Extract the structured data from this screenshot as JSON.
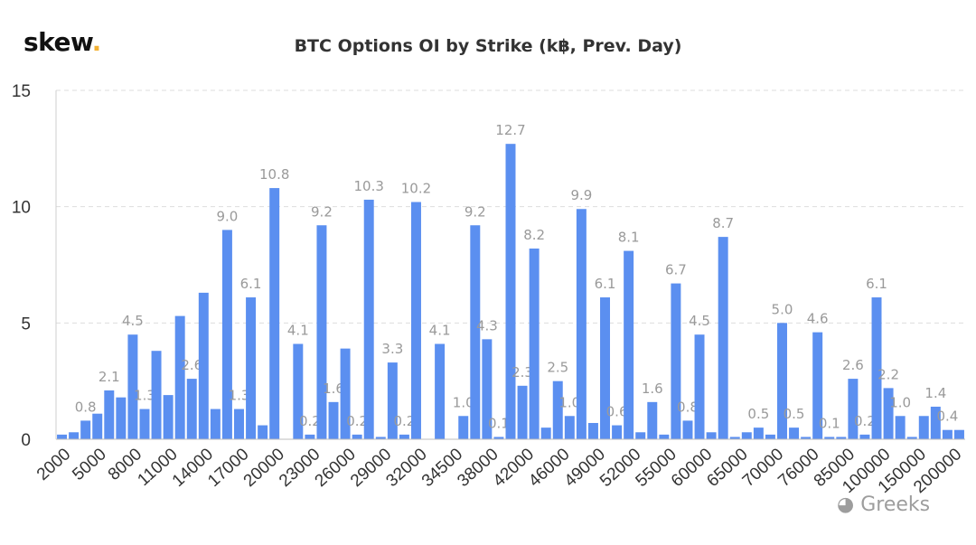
{
  "brand": {
    "name": "skew",
    "dot": "."
  },
  "watermark": {
    "icon": "wechat-icon",
    "text": "Greeks"
  },
  "chart_data": {
    "type": "bar",
    "title": "BTC Options OI by Strike (k฿, Prev. Day)",
    "xlabel": "",
    "ylabel": "",
    "ylim": [
      0,
      15
    ],
    "yticks": [
      0,
      5,
      10,
      15
    ],
    "grid": true,
    "bar_color": "#5b8ff0",
    "label_color": "#9a9a9a",
    "tick_labels": [
      "2000",
      "5000",
      "8000",
      "11000",
      "14000",
      "17000",
      "20000",
      "23000",
      "26000",
      "29000",
      "32000",
      "34500",
      "38000",
      "42000",
      "46000",
      "49000",
      "52000",
      "55000",
      "60000",
      "65000",
      "70000",
      "76000",
      "85000",
      "100000",
      "150000",
      "200000"
    ],
    "values": [
      0.2,
      0.3,
      0.8,
      1.1,
      2.1,
      1.8,
      4.5,
      1.3,
      3.8,
      1.9,
      5.3,
      2.6,
      6.3,
      1.3,
      9.0,
      1.3,
      6.1,
      0.6,
      10.8,
      0.0,
      4.1,
      0.2,
      9.2,
      1.6,
      3.9,
      0.2,
      10.3,
      0.1,
      3.3,
      0.2,
      10.2,
      0.0,
      4.1,
      0.0,
      1.0,
      9.2,
      4.3,
      0.1,
      12.7,
      2.3,
      8.2,
      0.5,
      2.5,
      1.0,
      9.9,
      0.7,
      6.1,
      0.6,
      8.1,
      0.3,
      1.6,
      0.2,
      6.7,
      0.8,
      4.5,
      0.3,
      8.7,
      0.1,
      0.3,
      0.5,
      0.2,
      5.0,
      0.5,
      0.1,
      4.6,
      0.1,
      0.1,
      2.6,
      0.2,
      6.1,
      2.2,
      1.0,
      0.1,
      1.0,
      1.4,
      0.4,
      0.4
    ],
    "labeled": [
      2,
      4,
      6,
      7,
      11,
      14,
      15,
      16,
      18,
      20,
      21,
      22,
      23,
      25,
      26,
      28,
      29,
      30,
      32,
      34,
      35,
      36,
      37,
      38,
      39,
      40,
      42,
      43,
      44,
      46,
      47,
      48,
      50,
      53,
      52,
      54,
      56,
      59,
      61,
      62,
      64,
      65,
      67,
      68,
      69,
      70,
      71,
      74,
      75
    ]
  }
}
